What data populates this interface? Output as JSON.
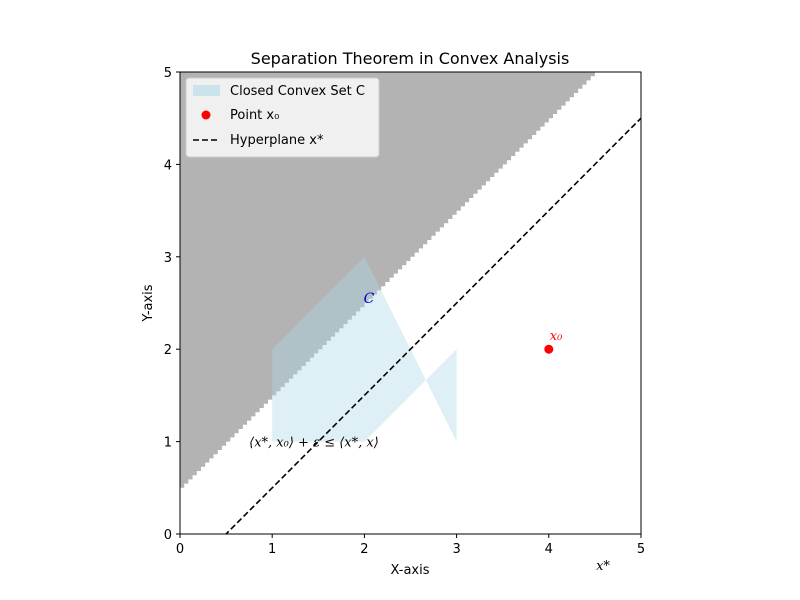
{
  "chart_data": {
    "type": "area",
    "title": "Separation Theorem in Convex Analysis",
    "xlabel": "X-axis",
    "ylabel": "Y-axis",
    "xlim": [
      0,
      5
    ],
    "ylim": [
      0,
      5
    ],
    "xticks": [
      "0",
      "1",
      "2",
      "3",
      "4",
      "5"
    ],
    "yticks": [
      "0",
      "1",
      "2",
      "3",
      "4",
      "5"
    ],
    "grid": false,
    "legend_position": "upper-left",
    "colors": {
      "convex_set": "#add8e6",
      "region": "#808080",
      "point": "#ff0000",
      "hyperplane": "#000000",
      "set_label": "#0000cc"
    },
    "region": {
      "description_shape": "above line y = x + 0.5",
      "slope": 1,
      "intercept": 0.5
    },
    "convex_set": {
      "legend": "Closed Convex Set C",
      "label": "C",
      "label_at": [
        2.05,
        2.5
      ],
      "polygon_upper": [
        [
          1,
          2
        ],
        [
          2,
          3
        ],
        [
          3,
          1
        ]
      ],
      "polygon_lower": [
        [
          1,
          1
        ],
        [
          2,
          1
        ],
        [
          3,
          2
        ]
      ]
    },
    "point": {
      "legend": "Point x₀",
      "label": "x₀",
      "x": 4,
      "y": 2
    },
    "hyperplane": {
      "legend": "Hyperplane x*",
      "slope": 1,
      "intercept": -0.5,
      "style": "dashed"
    },
    "annotations": {
      "inequality": "⟨x*, x₀⟩ + ε ≤ ⟨x*, x⟩",
      "inequality_at": [
        0.75,
        1.0
      ],
      "xstar": "x*"
    }
  }
}
